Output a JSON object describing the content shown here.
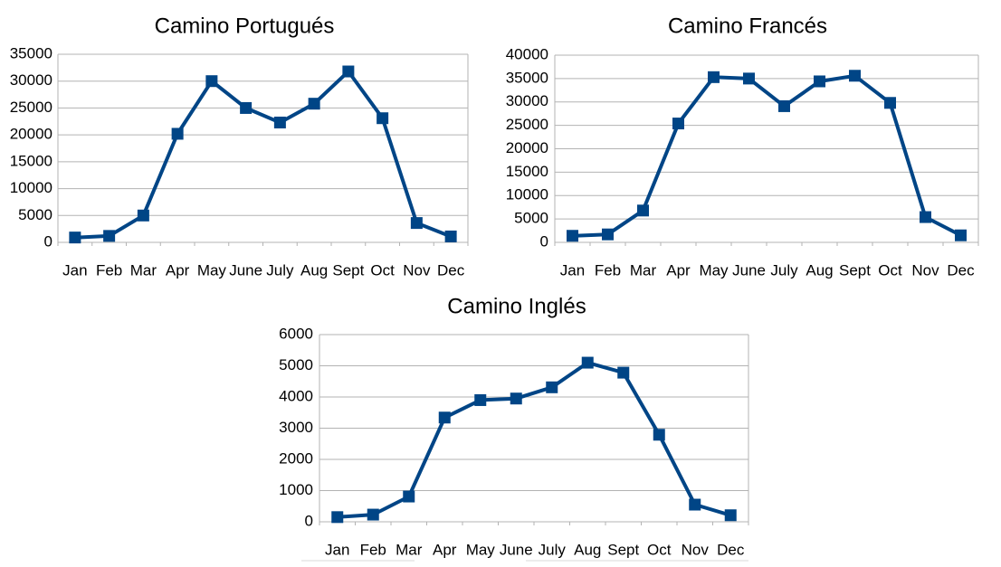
{
  "chart_data": [
    {
      "type": "line",
      "title": "Camino Portugués",
      "categories": [
        "Jan",
        "Feb",
        "Mar",
        "Apr",
        "May",
        "June",
        "July",
        "Aug",
        "Sept",
        "Oct",
        "Nov",
        "Dec"
      ],
      "values": [
        900,
        1200,
        5000,
        20200,
        30000,
        25000,
        22300,
        25800,
        31800,
        23100,
        3600,
        1100
      ],
      "ylim": [
        0,
        35000
      ],
      "yticks": [
        "0",
        "5000",
        "10000",
        "15000",
        "20000",
        "25000",
        "30000",
        "35000"
      ],
      "grid": true,
      "color": "#004586"
    },
    {
      "type": "line",
      "title": "Camino Francés",
      "categories": [
        "Jan",
        "Feb",
        "Mar",
        "Apr",
        "May",
        "June",
        "July",
        "Aug",
        "Sept",
        "Oct",
        "Nov",
        "Dec"
      ],
      "values": [
        1400,
        1700,
        6800,
        25400,
        35300,
        35000,
        29100,
        34400,
        35600,
        29800,
        5400,
        1500
      ],
      "ylim": [
        0,
        40000
      ],
      "yticks": [
        "0",
        "5000",
        "10000",
        "15000",
        "20000",
        "25000",
        "30000",
        "35000",
        "40000"
      ],
      "grid": true,
      "color": "#004586"
    },
    {
      "type": "line",
      "title": "Camino Inglés",
      "categories": [
        "Jan",
        "Feb",
        "Mar",
        "Apr",
        "May",
        "June",
        "July",
        "Aug",
        "Sept",
        "Oct",
        "Nov",
        "Dec"
      ],
      "values": [
        150,
        230,
        810,
        3340,
        3900,
        3950,
        4310,
        5100,
        4780,
        2790,
        550,
        210
      ],
      "ylim": [
        0,
        6000
      ],
      "yticks": [
        "0",
        "1000",
        "2000",
        "3000",
        "4000",
        "5000",
        "6000"
      ],
      "grid": true,
      "color": "#004586"
    }
  ]
}
